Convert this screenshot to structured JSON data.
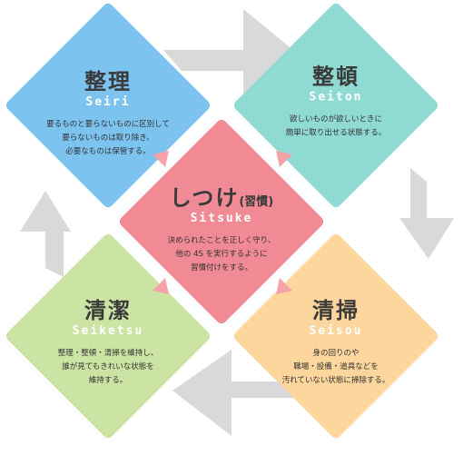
{
  "colors": {
    "seiri": "#7cc3f0",
    "seiton": "#8fdad2",
    "shitsuke": "#f08a94",
    "seiketsu": "#cbe3a3",
    "seisou": "#fcd69c",
    "arrow": "#d9d9d9",
    "pink_arrow": "#f6a2a8"
  },
  "seiri": {
    "title": "整理",
    "roman": "Seiri",
    "desc": [
      "要るものと要らないものに区別して",
      "要らないものは取り除き、",
      "必要なものは保管する。"
    ]
  },
  "seiton": {
    "title": "整頓",
    "roman": "Seiton",
    "desc": [
      "欲しいものが欲しいときに",
      "簡単に取り出せる状態する。"
    ]
  },
  "shitsuke": {
    "title": "しつけ",
    "title_sub": "(習慣)",
    "roman": "Sitsuke",
    "desc": [
      "決められたことを正しく守り、",
      "他の 4S を実行するように",
      "習慣付けをする。"
    ]
  },
  "seiketsu": {
    "title": "清潔",
    "roman": "Seiketsu",
    "desc": [
      "整理・整頓・清掃を維持し、",
      "誰が見てもきれいな状態を",
      "維持する。"
    ]
  },
  "seisou": {
    "title": "清掃",
    "roman": "Seisou",
    "desc": [
      "身の回りのや",
      "職場・設備・道具などを",
      "汚れていない状態に掃除する。"
    ]
  }
}
